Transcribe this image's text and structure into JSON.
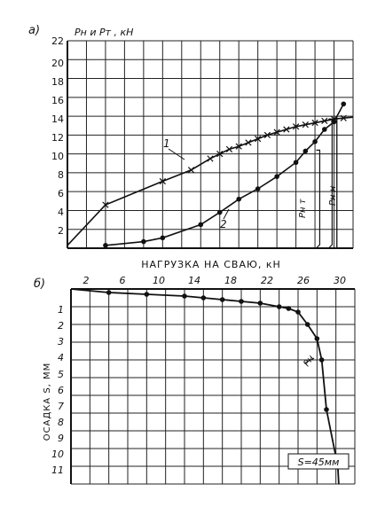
{
  "chart_data": [
    {
      "type": "line",
      "panel_label": "а)",
      "ylabel": "Pн и Pт , кН",
      "ylim": [
        0,
        22
      ],
      "y_ticks": [
        "22",
        "20",
        "18",
        "16",
        "14",
        "12",
        "10",
        "8",
        "6",
        "4",
        "2"
      ],
      "xlim": [
        0,
        30
      ],
      "series": [
        {
          "name": "1",
          "marker": "x",
          "x": [
            4,
            10,
            13,
            15,
            16,
            17,
            18,
            19,
            20,
            21,
            22,
            23,
            24,
            25,
            26,
            27,
            28,
            29
          ],
          "y": [
            4.6,
            7.1,
            8.3,
            9.5,
            10.0,
            10.5,
            10.8,
            11.2,
            11.6,
            12.0,
            12.3,
            12.6,
            12.9,
            13.1,
            13.3,
            13.5,
            13.7,
            13.8
          ]
        },
        {
          "name": "2",
          "marker": "dot",
          "x": [
            4,
            8,
            10,
            14,
            16,
            18,
            20,
            22,
            24,
            25,
            26,
            27,
            28,
            29
          ],
          "y": [
            0.3,
            0.7,
            1.1,
            2.5,
            3.8,
            5.2,
            6.3,
            7.6,
            9.1,
            10.3,
            11.3,
            12.6,
            13.4,
            15.3
          ]
        }
      ],
      "annotations": [
        "1",
        "2",
        "Pн т",
        "Pн н"
      ]
    },
    {
      "type": "line",
      "panel_label": "б)",
      "title": "НАГРУЗКА НА СВАЮ, кН",
      "ylabel": "ОСАДКА S, ММ",
      "x_ticks": [
        "2",
        "6",
        "10",
        "14",
        "18",
        "22",
        "26",
        "30"
      ],
      "y_ticks": [
        "1",
        "2",
        "3",
        "4",
        "5",
        "6",
        "7",
        "8",
        "9",
        "10",
        "11"
      ],
      "xlim": [
        0,
        30
      ],
      "ylim": [
        0,
        11
      ],
      "series": [
        {
          "name": "",
          "marker": "dot",
          "x": [
            4,
            8,
            12,
            14,
            16,
            18,
            20,
            22,
            23,
            24,
            25,
            26,
            26.5,
            27,
            28.2
          ],
          "y": [
            0.2,
            0.3,
            0.4,
            0.5,
            0.6,
            0.7,
            0.8,
            1.0,
            1.1,
            1.3,
            2.0,
            2.8,
            4.0,
            6.8,
            10.0
          ]
        }
      ],
      "annotations": [
        "Pн",
        "S=45мм"
      ]
    }
  ]
}
